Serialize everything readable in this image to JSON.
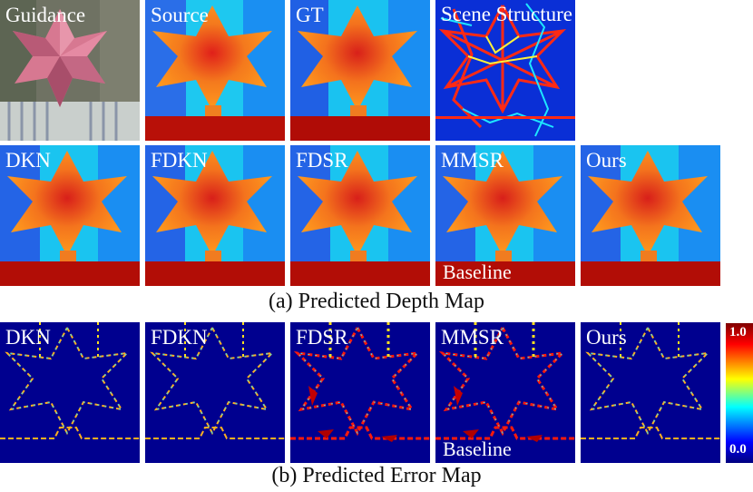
{
  "rows": {
    "top": [
      "Guidance",
      "Source",
      "GT",
      "Scene Structure"
    ],
    "depth": [
      "DKN",
      "FDKN",
      "FDSR",
      "MMSR",
      "Ours"
    ],
    "error": [
      "DKN",
      "FDKN",
      "FDSR",
      "MMSR",
      "Ours"
    ]
  },
  "baseline_label": "Baseline",
  "captions": {
    "depth": "(a) Predicted Depth Map",
    "error": "(b) Predicted Error Map"
  },
  "colorbar": {
    "max_label": "1.0",
    "min_label": "0.0",
    "colors": [
      "#00007f",
      "#0000ff",
      "#00ffff",
      "#ffff00",
      "#ff0000",
      "#7f0000"
    ]
  }
}
